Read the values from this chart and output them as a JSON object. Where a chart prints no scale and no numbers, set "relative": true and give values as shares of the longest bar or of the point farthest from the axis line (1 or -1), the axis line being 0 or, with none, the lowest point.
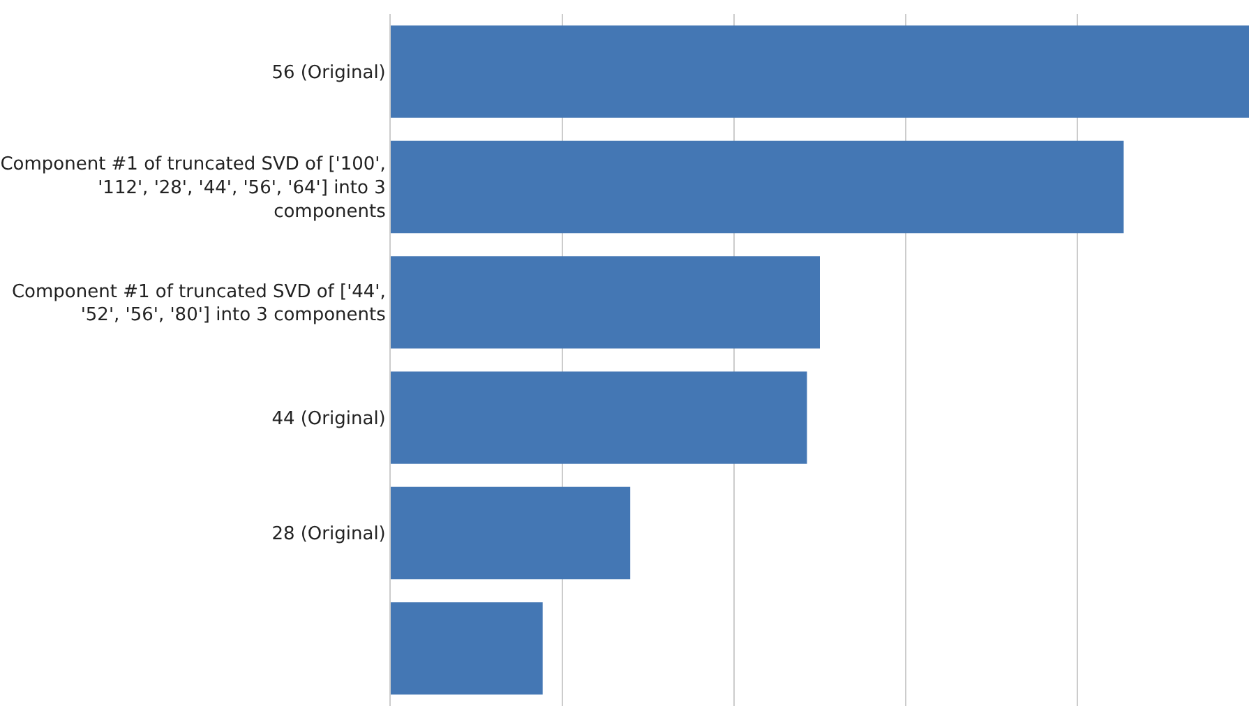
{
  "chart_data": {
    "type": "bar",
    "orientation": "horizontal",
    "relative": true,
    "grid": "x",
    "categories": [
      "56 (Original)",
      "Component #1 of truncated SVD of ['100', '112', '28', '44', '56', '64'] into 3 components",
      "Component #1 of truncated SVD of ['44', '52', '56', '80'] into 3 components",
      "44 (Original)",
      "28 (Original)",
      null
    ],
    "values": [
      1,
      0.854,
      0.5,
      0.485,
      0.279,
      0.177
    ],
    "color": "#4477b4"
  }
}
